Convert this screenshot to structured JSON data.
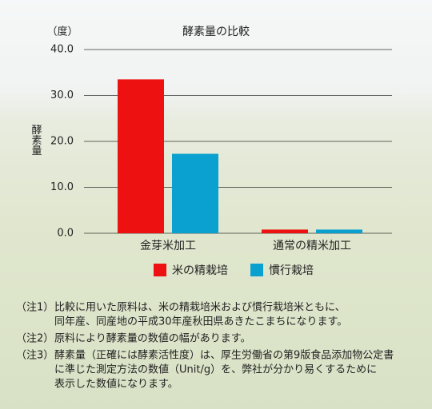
{
  "chart_data": {
    "type": "bar",
    "title": "酵素量の比較",
    "y_label": "酵素量",
    "y_unit": "（度）",
    "categories": [
      "金芽米加工",
      "通常の精米加工"
    ],
    "series": [
      {
        "name": "米の精栽培",
        "color": "#ee1111",
        "values": [
          33.5,
          0.8
        ]
      },
      {
        "name": "慣行栽培",
        "color": "#0aa0d0",
        "values": [
          17.3,
          0.8
        ]
      }
    ],
    "ylim": [
      0,
      40
    ],
    "yticks": [
      {
        "value": 0,
        "label": "0.0"
      },
      {
        "value": 10,
        "label": "10.0"
      },
      {
        "value": 20,
        "label": "20.0"
      },
      {
        "value": 30,
        "label": "30.0"
      },
      {
        "value": 40,
        "label": "40.0"
      }
    ],
    "grid": true
  },
  "notes": [
    {
      "label": "（注1）",
      "lines": [
        "比較に用いた原料は、米の精栽培米および慣行栽培米ともに、",
        "同年産、同産地の平成30年産秋田県あきたこまちになります。"
      ]
    },
    {
      "label": "（注2）",
      "lines": [
        "原料により酵素量の数値の幅があります。"
      ]
    },
    {
      "label": "（注3）",
      "lines": [
        "酵素量（正確には酵素活性度）は、厚生労働省の第9版食品添加物公定書",
        "に準じた測定方法の数値（Unit/g）を、弊社が分かり易くするために",
        "表示した数値になります。"
      ]
    }
  ]
}
